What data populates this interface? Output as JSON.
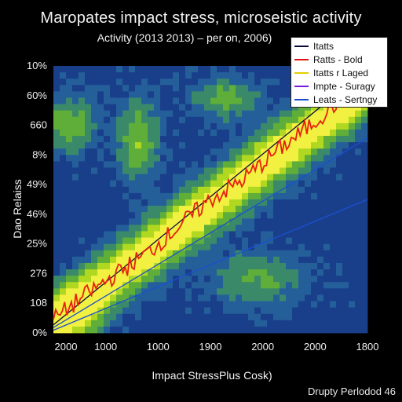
{
  "chart_data": {
    "type": "heatmap",
    "title": "Maropates impact stress, microseistic activity",
    "subtitle": "Activity (2013 2013) – per on, 2006)",
    "xlabel": "Impact StressPlus Cosk)",
    "ylabel": "Dao Relaiss",
    "x_tick_labels": [
      "2000",
      "1000",
      "1000",
      "1900",
      "2000",
      "2000",
      "1800"
    ],
    "y_tick_labels": [
      "0%",
      "108",
      "276",
      "25%",
      "46%",
      "49%",
      "8%",
      "660",
      "60%",
      "10%"
    ],
    "legend_position": "top-right",
    "legend": [
      {
        "label": "Itatts",
        "color": "#0a0a3a"
      },
      {
        "label": "Ratts - Bold",
        "color": "#e01010"
      },
      {
        "label": "Itatts r Laged",
        "color": "#e0d000"
      },
      {
        "label": "Impte - Suragy",
        "color": "#7a18d8"
      },
      {
        "label": "Leats - Sertngy",
        "color": "#1a50d0"
      }
    ],
    "colors": {
      "background": "#000000",
      "heat_low": "#1a3f8a",
      "heat_mid": "#3a8a6a",
      "heat_high": "#b0d820",
      "heat_peak": "#f2f040",
      "red_series": "#e82010",
      "line_dark": "#0a0a3a",
      "line_blue": "#1a50d0",
      "line_purple": "#7a18d8"
    },
    "series": [
      {
        "name": "Ratts - Bold",
        "x": [
          0,
          0.1,
          0.2,
          0.3,
          0.4,
          0.5,
          0.6,
          0.7,
          0.8,
          0.9,
          1.0
        ],
        "y": [
          0.05,
          0.14,
          0.22,
          0.3,
          0.4,
          0.5,
          0.57,
          0.67,
          0.76,
          0.86,
          0.95
        ]
      },
      {
        "name": "Itatts",
        "x": [
          0,
          1
        ],
        "y": [
          0.03,
          0.99
        ]
      },
      {
        "name": "Impte - Suragy",
        "x": [
          0,
          1
        ],
        "y": [
          0.02,
          0.73
        ]
      },
      {
        "name": "Leats - Sertngy",
        "x": [
          0,
          1
        ],
        "y": [
          0.01,
          0.5
        ]
      }
    ]
  },
  "footer": {
    "text": "Drupty Perlodod 46"
  }
}
